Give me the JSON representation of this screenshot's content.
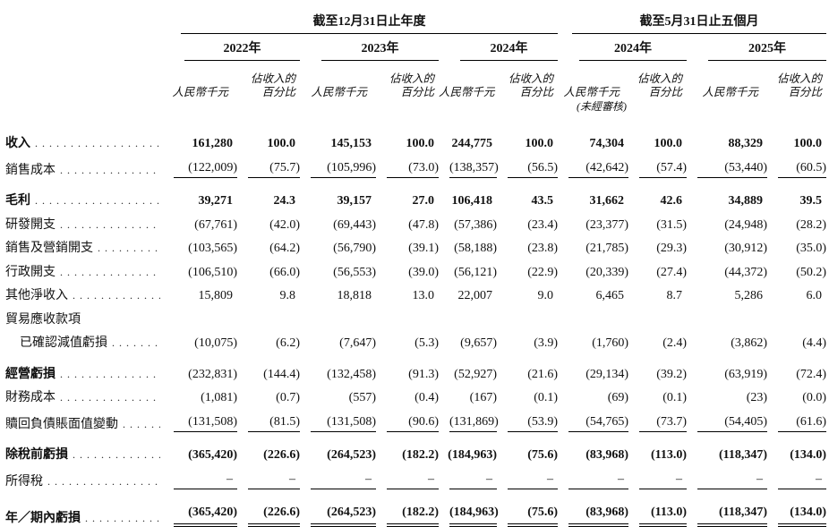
{
  "table": {
    "groups": [
      {
        "title": "截至12月31日止年度",
        "years_spanned": 3
      },
      {
        "title": "截至5月31日止五個月",
        "years_spanned": 2
      }
    ],
    "columns": [
      {
        "year": "2022年",
        "unaudited": false
      },
      {
        "year": "2023年",
        "unaudited": false
      },
      {
        "year": "2024年",
        "unaudited": false
      },
      {
        "year": "2024年",
        "unaudited": true
      },
      {
        "year": "2025年",
        "unaudited": false
      }
    ],
    "unit_label": "人民幣千元",
    "pct_label": [
      "佔收入的",
      "百分比"
    ],
    "unaudited_note": "(未經審核)",
    "rows": [
      {
        "label": "收入",
        "dots": true,
        "indent": false,
        "bold_label": true,
        "bold_values": true,
        "gap_above": false,
        "rule_below": "none",
        "values": [
          "161,280",
          "100.0",
          "145,153",
          "100.0",
          "244,775",
          "100.0",
          "74,304",
          "100.0",
          "88,329",
          "100.0"
        ]
      },
      {
        "label": "銷售成本",
        "dots": true,
        "indent": false,
        "bold_label": false,
        "bold_values": false,
        "gap_above": false,
        "rule_below": "single",
        "values": [
          "(122,009)",
          "(75.7)",
          "(105,996)",
          "(73.0)",
          "(138,357)",
          "(56.5)",
          "(42,642)",
          "(57.4)",
          "(53,440)",
          "(60.5)"
        ]
      },
      {
        "label": "毛利",
        "dots": true,
        "indent": false,
        "bold_label": true,
        "bold_values": true,
        "gap_above": true,
        "rule_below": "none",
        "values": [
          "39,271",
          "24.3",
          "39,157",
          "27.0",
          "106,418",
          "43.5",
          "31,662",
          "42.6",
          "34,889",
          "39.5"
        ]
      },
      {
        "label": "研發開支",
        "dots": true,
        "indent": false,
        "bold_label": false,
        "bold_values": false,
        "gap_above": false,
        "rule_below": "none",
        "values": [
          "(67,761)",
          "(42.0)",
          "(69,443)",
          "(47.8)",
          "(57,386)",
          "(23.4)",
          "(23,377)",
          "(31.5)",
          "(24,948)",
          "(28.2)"
        ]
      },
      {
        "label": "銷售及營銷開支",
        "dots": true,
        "indent": false,
        "bold_label": false,
        "bold_values": false,
        "gap_above": false,
        "rule_below": "none",
        "values": [
          "(103,565)",
          "(64.2)",
          "(56,790)",
          "(39.1)",
          "(58,188)",
          "(23.8)",
          "(21,785)",
          "(29.3)",
          "(30,912)",
          "(35.0)"
        ]
      },
      {
        "label": "行政開支",
        "dots": true,
        "indent": false,
        "bold_label": false,
        "bold_values": false,
        "gap_above": false,
        "rule_below": "none",
        "values": [
          "(106,510)",
          "(66.0)",
          "(56,553)",
          "(39.0)",
          "(56,121)",
          "(22.9)",
          "(20,339)",
          "(27.4)",
          "(44,372)",
          "(50.2)"
        ]
      },
      {
        "label": "其他淨收入",
        "dots": true,
        "indent": false,
        "bold_label": false,
        "bold_values": false,
        "gap_above": false,
        "rule_below": "none",
        "values": [
          "15,809",
          "9.8",
          "18,818",
          "13.0",
          "22,007",
          "9.0",
          "6,465",
          "8.7",
          "5,286",
          "6.0"
        ]
      },
      {
        "label": "貿易應收款項",
        "dots": false,
        "indent": false,
        "bold_label": false,
        "bold_values": false,
        "gap_above": false,
        "rule_below": "none",
        "values": [
          "",
          "",
          "",
          "",
          "",
          "",
          "",
          "",
          "",
          ""
        ]
      },
      {
        "label": "已確認減值虧損",
        "dots": true,
        "indent": true,
        "bold_label": false,
        "bold_values": false,
        "gap_above": false,
        "rule_below": "none",
        "values": [
          "(10,075)",
          "(6.2)",
          "(7,647)",
          "(5.3)",
          "(9,657)",
          "(3.9)",
          "(1,760)",
          "(2.4)",
          "(3,862)",
          "(4.4)"
        ]
      },
      {
        "label": "經營虧損",
        "dots": true,
        "indent": false,
        "bold_label": true,
        "bold_values": false,
        "gap_above": true,
        "rule_below": "none",
        "values": [
          "(232,831)",
          "(144.4)",
          "(132,458)",
          "(91.3)",
          "(52,927)",
          "(21.6)",
          "(29,134)",
          "(39.2)",
          "(63,919)",
          "(72.4)"
        ]
      },
      {
        "label": "財務成本",
        "dots": true,
        "indent": false,
        "bold_label": false,
        "bold_values": false,
        "gap_above": false,
        "rule_below": "none",
        "values": [
          "(1,081)",
          "(0.7)",
          "(557)",
          "(0.4)",
          "(167)",
          "(0.1)",
          "(69)",
          "(0.1)",
          "(23)",
          "(0.0)"
        ]
      },
      {
        "label": "贖回負債賬面值變動",
        "dots": true,
        "indent": false,
        "bold_label": false,
        "bold_values": false,
        "gap_above": false,
        "rule_below": "single",
        "values": [
          "(131,508)",
          "(81.5)",
          "(131,508)",
          "(90.6)",
          "(131,869)",
          "(53.9)",
          "(54,765)",
          "(73.7)",
          "(54,405)",
          "(61.6)"
        ]
      },
      {
        "label": "除稅前虧損",
        "dots": true,
        "indent": false,
        "bold_label": true,
        "bold_values": true,
        "gap_above": true,
        "rule_below": "none",
        "values": [
          "(365,420)",
          "(226.6)",
          "(264,523)",
          "(182.2)",
          "(184,963)",
          "(75.6)",
          "(83,968)",
          "(113.0)",
          "(118,347)",
          "(134.0)"
        ]
      },
      {
        "label": "所得稅",
        "dots": true,
        "indent": false,
        "bold_label": false,
        "bold_values": false,
        "gap_above": false,
        "rule_below": "single",
        "values": [
          "–",
          "–",
          "–",
          "–",
          "–",
          "–",
          "–",
          "–",
          "–",
          "–"
        ]
      },
      {
        "label": "年／期內虧損",
        "dots": true,
        "indent": false,
        "bold_label": true,
        "bold_values": true,
        "gap_above": true,
        "rule_below": "double",
        "values": [
          "(365,420)",
          "(226.6)",
          "(264,523)",
          "(182.2)",
          "(184,963)",
          "(75.6)",
          "(83,968)",
          "(113.0)",
          "(118,347)",
          "(134.0)"
        ]
      }
    ]
  }
}
